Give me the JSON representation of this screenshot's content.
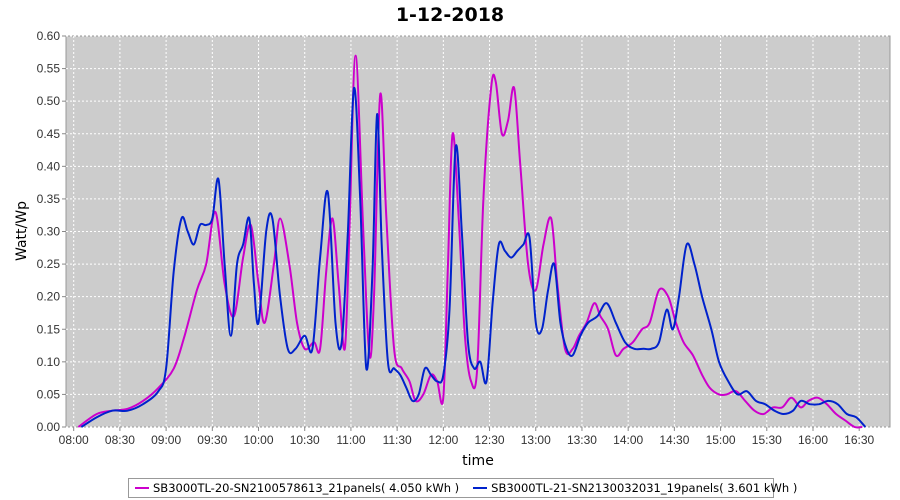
{
  "chart_data": {
    "type": "line",
    "title": "1-12-2018",
    "xlabel": "time",
    "ylabel": "Watt/Wp",
    "ylim": [
      0,
      0.6
    ],
    "yticks": [
      "0.00",
      "0.05",
      "0.10",
      "0.15",
      "0.20",
      "0.25",
      "0.30",
      "0.35",
      "0.40",
      "0.45",
      "0.50",
      "0.55",
      "0.60"
    ],
    "xlim": [
      "07:55",
      "16:50"
    ],
    "xticks": [
      "08:00",
      "08:30",
      "09:00",
      "09:30",
      "10:00",
      "10:30",
      "11:00",
      "11:30",
      "12:00",
      "12:30",
      "13:00",
      "13:30",
      "14:00",
      "14:30",
      "15:00",
      "15:30",
      "16:00",
      "16:30"
    ],
    "grid": true,
    "legend_position": "bottom",
    "background": "#cccccc",
    "series": [
      {
        "name": "SB3000TL-20-SN2100578613_21panels( 4.050 kWh )",
        "color": "#cc00cc",
        "x": [
          "08:03",
          "08:15",
          "08:25",
          "08:35",
          "08:45",
          "08:55",
          "09:05",
          "09:12",
          "09:20",
          "09:26",
          "09:32",
          "09:38",
          "09:44",
          "09:50",
          "09:55",
          "10:00",
          "10:04",
          "10:10",
          "10:14",
          "10:20",
          "10:25",
          "10:30",
          "10:36",
          "10:40",
          "10:44",
          "10:48",
          "10:52",
          "10:56",
          "10:59",
          "11:03",
          "11:08",
          "11:12",
          "11:15",
          "11:19",
          "11:23",
          "11:28",
          "11:33",
          "11:38",
          "11:42",
          "11:47",
          "11:52",
          "11:56",
          "12:00",
          "12:03",
          "12:06",
          "12:10",
          "12:14",
          "12:18",
          "12:22",
          "12:26",
          "12:31",
          "12:34",
          "12:38",
          "12:42",
          "12:46",
          "12:50",
          "12:55",
          "13:00",
          "13:05",
          "13:10",
          "13:14",
          "13:19",
          "13:24",
          "13:28",
          "13:33",
          "13:38",
          "13:42",
          "13:47",
          "13:52",
          "13:57",
          "14:03",
          "14:09",
          "14:14",
          "14:20",
          "14:26",
          "14:31",
          "14:36",
          "14:42",
          "14:48",
          "14:53",
          "14:59",
          "15:04",
          "15:10",
          "15:16",
          "15:22",
          "15:28",
          "15:34",
          "15:40",
          "15:46",
          "15:52",
          "15:57",
          "16:03",
          "16:09",
          "16:15",
          "16:21",
          "16:27",
          "16:32"
        ],
        "y": [
          0.0,
          0.02,
          0.025,
          0.028,
          0.04,
          0.06,
          0.09,
          0.14,
          0.21,
          0.25,
          0.33,
          0.22,
          0.17,
          0.26,
          0.31,
          0.22,
          0.16,
          0.25,
          0.32,
          0.25,
          0.16,
          0.12,
          0.13,
          0.12,
          0.24,
          0.32,
          0.22,
          0.12,
          0.3,
          0.57,
          0.3,
          0.11,
          0.2,
          0.51,
          0.32,
          0.12,
          0.09,
          0.07,
          0.04,
          0.05,
          0.08,
          0.07,
          0.045,
          0.25,
          0.45,
          0.32,
          0.14,
          0.07,
          0.09,
          0.35,
          0.52,
          0.53,
          0.45,
          0.47,
          0.52,
          0.4,
          0.25,
          0.21,
          0.28,
          0.32,
          0.22,
          0.12,
          0.12,
          0.14,
          0.16,
          0.19,
          0.17,
          0.15,
          0.11,
          0.12,
          0.13,
          0.15,
          0.16,
          0.21,
          0.2,
          0.16,
          0.13,
          0.11,
          0.08,
          0.06,
          0.05,
          0.05,
          0.055,
          0.04,
          0.025,
          0.02,
          0.03,
          0.03,
          0.045,
          0.03,
          0.04,
          0.045,
          0.035,
          0.02,
          0.01,
          0.0,
          0.0
        ]
      },
      {
        "name": "SB3000TL-21-SN2130032031_19panels( 3.601 kWh )",
        "color": "#0022cc",
        "x": [
          "08:05",
          "08:15",
          "08:25",
          "08:35",
          "08:45",
          "08:55",
          "09:00",
          "09:05",
          "09:10",
          "09:14",
          "09:18",
          "09:22",
          "09:26",
          "09:30",
          "09:34",
          "09:38",
          "09:42",
          "09:46",
          "09:50",
          "09:54",
          "09:57",
          "10:00",
          "10:05",
          "10:09",
          "10:14",
          "10:19",
          "10:24",
          "10:30",
          "10:35",
          "10:40",
          "10:45",
          "10:50",
          "10:54",
          "10:58",
          "11:02",
          "11:06",
          "11:10",
          "11:14",
          "11:17",
          "11:20",
          "11:24",
          "11:28",
          "11:32",
          "11:36",
          "11:40",
          "11:44",
          "11:48",
          "11:52",
          "11:56",
          "12:00",
          "12:04",
          "12:08",
          "12:12",
          "12:16",
          "12:20",
          "12:24",
          "12:28",
          "12:32",
          "12:36",
          "12:40",
          "12:44",
          "12:48",
          "12:52",
          "12:56",
          "13:00",
          "13:04",
          "13:08",
          "13:12",
          "13:16",
          "13:20",
          "13:24",
          "13:29",
          "13:34",
          "13:40",
          "13:46",
          "13:52",
          "13:58",
          "14:04",
          "14:10",
          "14:15",
          "14:20",
          "14:25",
          "14:29",
          "14:33",
          "14:38",
          "14:43",
          "14:48",
          "14:54",
          "14:59",
          "15:05",
          "15:11",
          "15:17",
          "15:23",
          "15:29",
          "15:35",
          "15:41",
          "15:47",
          "15:52",
          "15:58",
          "16:04",
          "16:10",
          "16:16",
          "16:22",
          "16:28",
          "16:34"
        ],
        "y": [
          0.0,
          0.015,
          0.025,
          0.025,
          0.035,
          0.055,
          0.09,
          0.24,
          0.32,
          0.3,
          0.28,
          0.31,
          0.31,
          0.32,
          0.38,
          0.25,
          0.14,
          0.25,
          0.28,
          0.32,
          0.22,
          0.16,
          0.3,
          0.32,
          0.2,
          0.12,
          0.12,
          0.14,
          0.12,
          0.26,
          0.36,
          0.16,
          0.13,
          0.3,
          0.52,
          0.35,
          0.09,
          0.24,
          0.48,
          0.28,
          0.1,
          0.09,
          0.08,
          0.06,
          0.04,
          0.05,
          0.09,
          0.08,
          0.07,
          0.08,
          0.18,
          0.43,
          0.3,
          0.13,
          0.09,
          0.1,
          0.07,
          0.19,
          0.28,
          0.27,
          0.26,
          0.27,
          0.28,
          0.29,
          0.16,
          0.15,
          0.21,
          0.25,
          0.16,
          0.12,
          0.11,
          0.14,
          0.16,
          0.17,
          0.19,
          0.16,
          0.13,
          0.12,
          0.12,
          0.12,
          0.13,
          0.18,
          0.15,
          0.2,
          0.28,
          0.25,
          0.2,
          0.15,
          0.1,
          0.07,
          0.05,
          0.055,
          0.04,
          0.035,
          0.025,
          0.02,
          0.025,
          0.04,
          0.035,
          0.035,
          0.04,
          0.035,
          0.02,
          0.015,
          0.0
        ]
      }
    ]
  }
}
